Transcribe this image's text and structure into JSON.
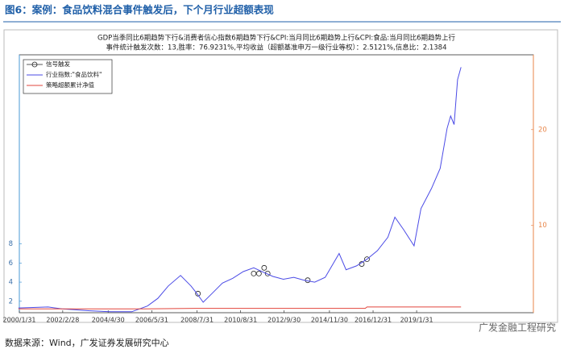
{
  "header": {
    "title": "图6：案例：食品饮料混合事件触发后，下个月行业超额表现"
  },
  "chart_data": {
    "type": "line",
    "title": "GDP当季同比6期趋势下行&消费者信心指数6期趋势下行&CPI:当月同比6期趋势上行&CPI:食品:当月同比6期趋势上行",
    "subtitle": "事件统计触发次数：13,胜率：76.9231%,平均收益（超额基准申万一级行业等权）：2.5121%,信息比：2.1384",
    "xlim": [
      "2000/1/31",
      "2024/8/31"
    ],
    "xticks": [
      "2000/1/31",
      "2002/2/28",
      "2004/4/30",
      "2006/5/31",
      "2008/7/31",
      "2010/8/31",
      "2012/9/30",
      "2014/11/30",
      "2016/12/31",
      "2019/1/31"
    ],
    "ylim": [
      0.8,
      27.8
    ],
    "yticks": [
      2,
      4,
      6,
      8
    ],
    "y2lim": [
      0.9,
      27.8
    ],
    "y2ticks": [
      10,
      20
    ],
    "legend": "upper left",
    "series": [
      {
        "name": "信号触发",
        "color": "#222222",
        "marker": "circle",
        "x": [
          "2008/8",
          "2011/4",
          "2011/7",
          "2011/10",
          "2011/12",
          "2013/11",
          "2016/6",
          "2016/9"
        ],
        "values": [
          2.8,
          4.9,
          4.9,
          5.5,
          4.9,
          4.2,
          5.9,
          6.4
        ]
      },
      {
        "name": "行业指数:\"食品饮料\"",
        "color": "#4b4be6",
        "x": [
          "2000/1",
          "2001/6",
          "2002/2",
          "2003/6",
          "2004/6",
          "2005/6",
          "2006/3",
          "2006/9",
          "2007/3",
          "2007/10",
          "2008/4",
          "2008/7",
          "2008/11",
          "2009/4",
          "2009/10",
          "2010/4",
          "2010/10",
          "2011/4",
          "2011/10",
          "2012/3",
          "2012/9",
          "2013/3",
          "2013/9",
          "2014/3",
          "2014/9",
          "2015/5",
          "2015/9",
          "2016/3",
          "2016/9",
          "2017/3",
          "2017/9",
          "2018/1",
          "2018/6",
          "2018/12",
          "2019/4",
          "2019/10",
          "2020/3",
          "2020/7",
          "2020/9",
          "2020/11",
          "2021/1",
          "2021/3"
        ],
        "values": [
          1.3,
          1.4,
          1.2,
          1.0,
          0.9,
          0.9,
          1.5,
          2.3,
          3.6,
          4.7,
          3.6,
          2.9,
          1.9,
          2.8,
          3.9,
          4.4,
          5.1,
          5.5,
          5.0,
          4.6,
          4.3,
          4.5,
          4.2,
          4.0,
          4.5,
          7.0,
          5.3,
          5.7,
          6.4,
          7.3,
          8.7,
          10.8,
          9.5,
          7.8,
          11.7,
          13.8,
          15.9,
          20.1,
          21.4,
          20.5,
          25.2,
          26.5
        ]
      },
      {
        "name": "策略超额累计净值",
        "color": "#e2463c",
        "axis": "y2",
        "x": [
          "2000/1",
          "2006/1",
          "2008/6",
          "2016/8",
          "2016/9",
          "2021/3"
        ],
        "values": [
          1.3,
          1.3,
          1.35,
          1.35,
          1.5,
          1.5
        ]
      }
    ]
  },
  "source": "数据来源：Wind，广发证券发展研究中心",
  "watermark": "广发金融工程研究"
}
